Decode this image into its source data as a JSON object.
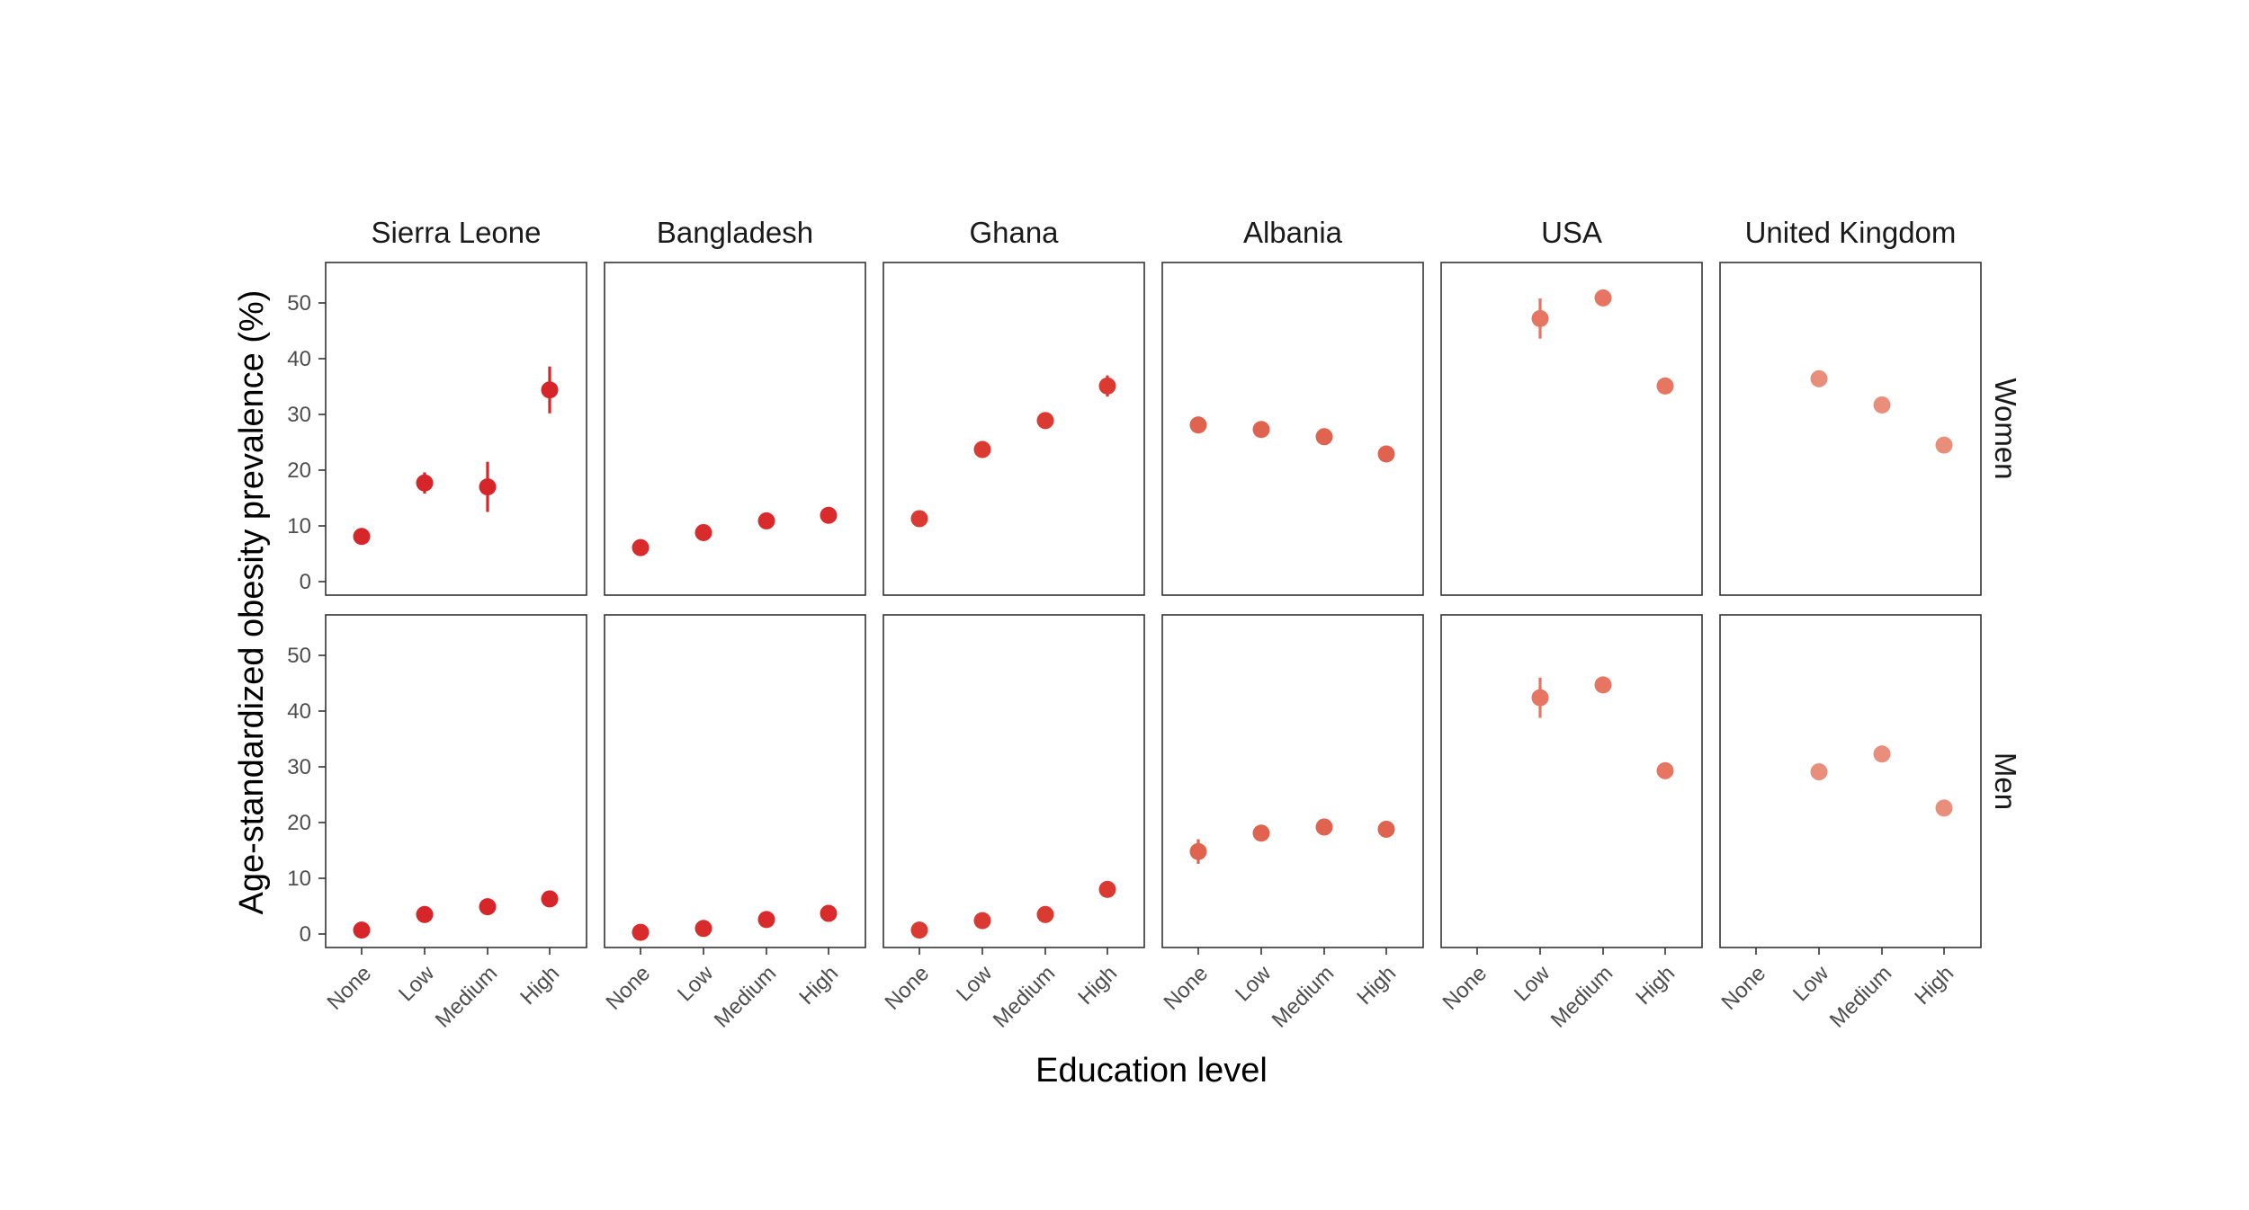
{
  "chart_data": {
    "type": "scatter",
    "subtype": "faceted point-range",
    "title": "",
    "xlabel": "Education level",
    "ylabel": "Age-standardized obesity prevalence (%)",
    "ylim": [
      0,
      57
    ],
    "yticks": [
      0,
      10,
      20,
      30,
      40,
      50
    ],
    "categories": [
      "None",
      "Low",
      "Medium",
      "High"
    ],
    "grid": false,
    "facet_columns": [
      "Sierra Leone",
      "Bangladesh",
      "Ghana",
      "Albania",
      "USA",
      "United Kingdom"
    ],
    "facet_rows": [
      "Women",
      "Men"
    ],
    "column_colors": [
      "#d7262a",
      "#d92b2b",
      "#db3a32",
      "#e0634f",
      "#e67561",
      "#e98e7a"
    ],
    "panels": [
      {
        "country": "Sierra Leone",
        "sex": "Women",
        "points": [
          {
            "x": "None",
            "y": 8.1,
            "low": 7.5,
            "high": 8.8
          },
          {
            "x": "Low",
            "y": 17.7,
            "low": 15.8,
            "high": 19.6
          },
          {
            "x": "Medium",
            "y": 17.0,
            "low": 12.5,
            "high": 21.5
          },
          {
            "x": "High",
            "y": 34.4,
            "low": 30.2,
            "high": 38.6
          }
        ]
      },
      {
        "country": "Bangladesh",
        "sex": "Women",
        "points": [
          {
            "x": "None",
            "y": 6.1,
            "low": 5.7,
            "high": 6.5
          },
          {
            "x": "Low",
            "y": 8.8,
            "low": 8.4,
            "high": 9.2
          },
          {
            "x": "Medium",
            "y": 10.9,
            "low": 10.4,
            "high": 11.4
          },
          {
            "x": "High",
            "y": 11.9,
            "low": 11.2,
            "high": 12.6
          }
        ]
      },
      {
        "country": "Ghana",
        "sex": "Women",
        "points": [
          {
            "x": "None",
            "y": 11.3,
            "low": 10.6,
            "high": 12.0
          },
          {
            "x": "Low",
            "y": 23.7,
            "low": 23.0,
            "high": 24.4
          },
          {
            "x": "Medium",
            "y": 28.9,
            "low": 28.2,
            "high": 29.6
          },
          {
            "x": "High",
            "y": 35.1,
            "low": 33.2,
            "high": 37.0
          }
        ]
      },
      {
        "country": "Albania",
        "sex": "Women",
        "points": [
          {
            "x": "None",
            "y": 28.1,
            "low": 26.6,
            "high": 29.6
          },
          {
            "x": "Low",
            "y": 27.3,
            "low": 26.7,
            "high": 27.9
          },
          {
            "x": "Medium",
            "y": 26.0,
            "low": 25.4,
            "high": 26.6
          },
          {
            "x": "High",
            "y": 22.9,
            "low": 22.2,
            "high": 23.6
          }
        ]
      },
      {
        "country": "USA",
        "sex": "Women",
        "points": [
          {
            "x": "Low",
            "y": 47.2,
            "low": 43.6,
            "high": 50.8
          },
          {
            "x": "Medium",
            "y": 50.9,
            "low": 50.2,
            "high": 51.6
          },
          {
            "x": "High",
            "y": 35.1,
            "low": 34.4,
            "high": 35.8
          }
        ]
      },
      {
        "country": "United Kingdom",
        "sex": "Women",
        "points": [
          {
            "x": "Low",
            "y": 36.4,
            "low": 35.7,
            "high": 37.1
          },
          {
            "x": "Medium",
            "y": 31.7,
            "low": 31.0,
            "high": 32.4
          },
          {
            "x": "High",
            "y": 24.5,
            "low": 23.8,
            "high": 25.2
          }
        ]
      },
      {
        "country": "Sierra Leone",
        "sex": "Men",
        "points": [
          {
            "x": "None",
            "y": 0.7,
            "low": 0.4,
            "high": 1.0
          },
          {
            "x": "Low",
            "y": 3.5,
            "low": 3.1,
            "high": 3.9
          },
          {
            "x": "Medium",
            "y": 4.9,
            "low": 4.4,
            "high": 5.4
          },
          {
            "x": "High",
            "y": 6.3,
            "low": 5.7,
            "high": 6.9
          }
        ]
      },
      {
        "country": "Bangladesh",
        "sex": "Men",
        "points": [
          {
            "x": "None",
            "y": 0.3,
            "low": 0.1,
            "high": 0.5
          },
          {
            "x": "Low",
            "y": 1.0,
            "low": 0.7,
            "high": 1.3
          },
          {
            "x": "Medium",
            "y": 2.6,
            "low": 2.2,
            "high": 3.0
          },
          {
            "x": "High",
            "y": 3.7,
            "low": 3.2,
            "high": 4.2
          }
        ]
      },
      {
        "country": "Ghana",
        "sex": "Men",
        "points": [
          {
            "x": "None",
            "y": 0.7,
            "low": 0.4,
            "high": 1.0
          },
          {
            "x": "Low",
            "y": 2.4,
            "low": 2.0,
            "high": 2.8
          },
          {
            "x": "Medium",
            "y": 3.5,
            "low": 3.0,
            "high": 4.0
          },
          {
            "x": "High",
            "y": 8.0,
            "low": 7.3,
            "high": 8.7
          }
        ]
      },
      {
        "country": "Albania",
        "sex": "Men",
        "points": [
          {
            "x": "None",
            "y": 14.8,
            "low": 12.6,
            "high": 17.0
          },
          {
            "x": "Low",
            "y": 18.1,
            "low": 17.4,
            "high": 18.8
          },
          {
            "x": "Medium",
            "y": 19.2,
            "low": 18.5,
            "high": 19.9
          },
          {
            "x": "High",
            "y": 18.8,
            "low": 18.0,
            "high": 19.6
          }
        ]
      },
      {
        "country": "USA",
        "sex": "Men",
        "points": [
          {
            "x": "Low",
            "y": 42.4,
            "low": 38.8,
            "high": 46.0
          },
          {
            "x": "Medium",
            "y": 44.7,
            "low": 44.0,
            "high": 45.4
          },
          {
            "x": "High",
            "y": 29.3,
            "low": 28.6,
            "high": 30.0
          }
        ]
      },
      {
        "country": "United Kingdom",
        "sex": "Men",
        "points": [
          {
            "x": "Low",
            "y": 29.1,
            "low": 28.4,
            "high": 29.8
          },
          {
            "x": "Medium",
            "y": 32.3,
            "low": 31.6,
            "high": 33.0
          },
          {
            "x": "High",
            "y": 22.6,
            "low": 21.9,
            "high": 23.3
          }
        ]
      }
    ]
  }
}
